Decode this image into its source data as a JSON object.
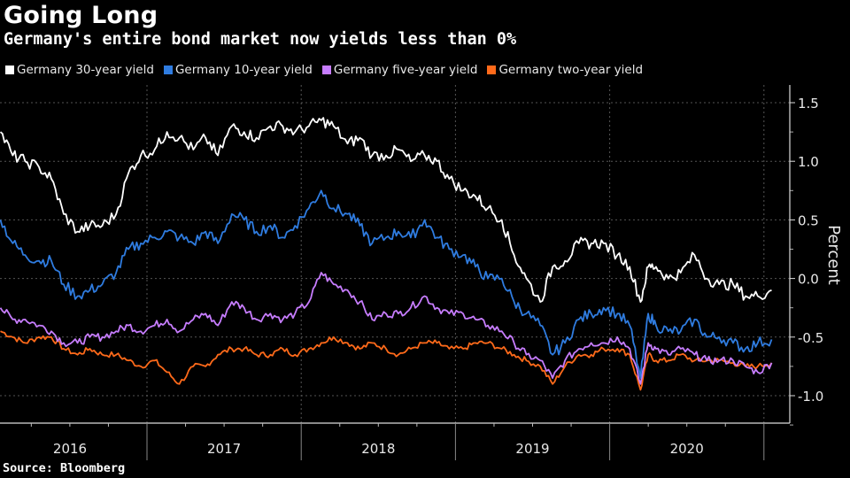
{
  "header": {
    "title": "Going Long",
    "subtitle": "Germany's entire bond market now yields less than 0%"
  },
  "footer": {
    "source": "Source: Bloomberg"
  },
  "chart_data": {
    "type": "line",
    "title": "Going Long",
    "subtitle": "Germany's entire bond market now yields less than 0%",
    "xlabel": "",
    "ylabel": "Percent",
    "ylim": [
      -1.25,
      1.65
    ],
    "yticks": [
      1.5,
      1.0,
      0.5,
      0.0,
      -0.5,
      -1.0
    ],
    "ytick_labels": [
      "1.5",
      "1.0",
      "0.5",
      "0.0",
      "-0.5",
      "-1.0"
    ],
    "xticks": [
      "2016",
      "2017",
      "2018",
      "2019",
      "2020"
    ],
    "x_range": [
      2016.05,
      2021.25
    ],
    "grid": true,
    "legend_position": "top-left",
    "x": [
      2016.05,
      2016.13,
      2016.21,
      2016.3,
      2016.38,
      2016.46,
      2016.55,
      2016.63,
      2016.71,
      2016.8,
      2016.88,
      2016.96,
      2017.05,
      2017.13,
      2017.21,
      2017.3,
      2017.38,
      2017.46,
      2017.55,
      2017.63,
      2017.71,
      2017.8,
      2017.88,
      2017.96,
      2018.05,
      2018.13,
      2018.21,
      2018.3,
      2018.38,
      2018.46,
      2018.55,
      2018.63,
      2018.71,
      2018.8,
      2018.88,
      2018.96,
      2019.05,
      2019.13,
      2019.21,
      2019.3,
      2019.38,
      2019.46,
      2019.55,
      2019.63,
      2019.71,
      2019.8,
      2019.88,
      2019.96,
      2020.05,
      2020.13,
      2020.2,
      2020.25,
      2020.3,
      2020.38,
      2020.46,
      2020.55,
      2020.63,
      2020.71,
      2020.8,
      2020.88,
      2020.96,
      2021.05
    ],
    "series": [
      {
        "name": "Germany 30-year yield",
        "color": "#ffffff",
        "values": [
          1.25,
          1.05,
          1.0,
          0.95,
          0.85,
          0.55,
          0.4,
          0.45,
          0.45,
          0.55,
          0.9,
          1.05,
          1.1,
          1.25,
          1.2,
          1.1,
          1.2,
          1.05,
          1.3,
          1.25,
          1.2,
          1.3,
          1.3,
          1.25,
          1.3,
          1.35,
          1.3,
          1.15,
          1.2,
          1.05,
          1.05,
          1.1,
          1.0,
          1.05,
          1.0,
          0.85,
          0.75,
          0.7,
          0.6,
          0.5,
          0.2,
          0.0,
          -0.2,
          0.1,
          0.15,
          0.3,
          0.3,
          0.3,
          0.2,
          0.1,
          -0.2,
          0.1,
          0.1,
          0.0,
          0.05,
          0.2,
          0.0,
          -0.05,
          -0.05,
          -0.15,
          -0.15,
          -0.1
        ]
      },
      {
        "name": "Germany 10-year yield",
        "color": "#2f7ce0",
        "values": [
          0.5,
          0.3,
          0.2,
          0.15,
          0.15,
          -0.05,
          -0.15,
          -0.1,
          -0.05,
          0.05,
          0.25,
          0.3,
          0.35,
          0.4,
          0.35,
          0.3,
          0.4,
          0.3,
          0.55,
          0.5,
          0.4,
          0.45,
          0.35,
          0.45,
          0.6,
          0.75,
          0.6,
          0.55,
          0.45,
          0.3,
          0.35,
          0.4,
          0.35,
          0.5,
          0.35,
          0.25,
          0.2,
          0.1,
          0.0,
          0.0,
          -0.2,
          -0.3,
          -0.4,
          -0.65,
          -0.55,
          -0.35,
          -0.3,
          -0.25,
          -0.3,
          -0.4,
          -0.85,
          -0.3,
          -0.4,
          -0.45,
          -0.45,
          -0.35,
          -0.5,
          -0.5,
          -0.55,
          -0.6,
          -0.55,
          -0.52
        ]
      },
      {
        "name": "Germany five-year yield",
        "color": "#c77dff",
        "values": [
          -0.25,
          -0.35,
          -0.35,
          -0.4,
          -0.45,
          -0.55,
          -0.55,
          -0.5,
          -0.5,
          -0.45,
          -0.4,
          -0.45,
          -0.4,
          -0.35,
          -0.45,
          -0.35,
          -0.3,
          -0.4,
          -0.2,
          -0.25,
          -0.35,
          -0.3,
          -0.35,
          -0.3,
          -0.2,
          0.05,
          -0.05,
          -0.1,
          -0.2,
          -0.35,
          -0.3,
          -0.3,
          -0.25,
          -0.15,
          -0.25,
          -0.3,
          -0.3,
          -0.35,
          -0.4,
          -0.45,
          -0.55,
          -0.65,
          -0.7,
          -0.85,
          -0.7,
          -0.6,
          -0.55,
          -0.55,
          -0.5,
          -0.6,
          -0.9,
          -0.55,
          -0.6,
          -0.65,
          -0.6,
          -0.65,
          -0.7,
          -0.7,
          -0.7,
          -0.75,
          -0.8,
          -0.72
        ]
      },
      {
        "name": "Germany two-year yield",
        "color": "#ff6a1a",
        "values": [
          -0.45,
          -0.5,
          -0.55,
          -0.5,
          -0.5,
          -0.6,
          -0.65,
          -0.6,
          -0.65,
          -0.65,
          -0.7,
          -0.75,
          -0.7,
          -0.8,
          -0.9,
          -0.75,
          -0.75,
          -0.65,
          -0.6,
          -0.6,
          -0.65,
          -0.65,
          -0.6,
          -0.65,
          -0.6,
          -0.55,
          -0.5,
          -0.55,
          -0.6,
          -0.55,
          -0.6,
          -0.65,
          -0.6,
          -0.55,
          -0.55,
          -0.6,
          -0.6,
          -0.55,
          -0.55,
          -0.6,
          -0.65,
          -0.7,
          -0.75,
          -0.9,
          -0.75,
          -0.65,
          -0.65,
          -0.6,
          -0.6,
          -0.65,
          -0.95,
          -0.65,
          -0.7,
          -0.7,
          -0.65,
          -0.7,
          -0.7,
          -0.7,
          -0.72,
          -0.75,
          -0.75,
          -0.72
        ]
      }
    ]
  }
}
